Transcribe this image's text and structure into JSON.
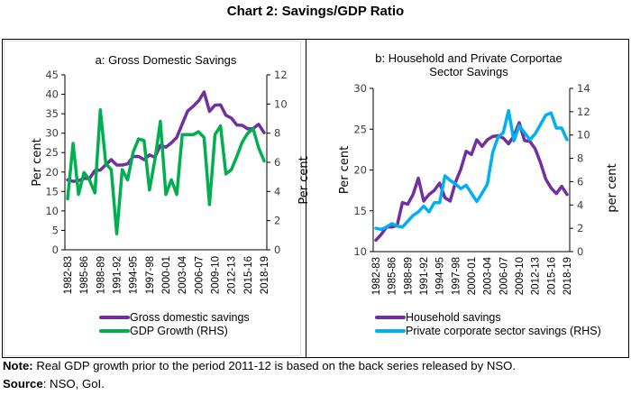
{
  "title": "Chart 2: Savings/GDP Ratio",
  "note_label": "Note:",
  "note_text": " Real GDP growth prior to the period 2011-12 is based on the back series released by NSO.",
  "source_label": "Source",
  "source_text": ": NSO, GoI.",
  "colors": {
    "purple": "#7030a0",
    "green": "#00b050",
    "blue": "#00b0f0"
  },
  "chart_data": [
    {
      "type": "line",
      "title": "a: Gross Domestic Savings",
      "xlabel": "",
      "ylabel": "Per cent",
      "ylabel_right": "Per cent",
      "ylim": [
        0,
        45
      ],
      "yticks": [
        0,
        5,
        10,
        15,
        20,
        25,
        30,
        35,
        40,
        45
      ],
      "ylim_right": [
        0,
        12
      ],
      "yticks_right": [
        0,
        2,
        4,
        6,
        8,
        10,
        12
      ],
      "grid": false,
      "legend_position": "bottom",
      "x": [
        "1982-83",
        "1983-84",
        "1984-85",
        "1985-86",
        "1986-87",
        "1987-88",
        "1988-89",
        "1989-90",
        "1990-91",
        "1991-92",
        "1992-93",
        "1993-94",
        "1994-95",
        "1995-96",
        "1996-97",
        "1997-98",
        "1998-99",
        "1999-00",
        "2000-01",
        "2001-02",
        "2002-03",
        "2003-04",
        "2004-05",
        "2005-06",
        "2006-07",
        "2007-08",
        "2008-09",
        "2009-10",
        "2010-11",
        "2011-12",
        "2012-13",
        "2013-14",
        "2014-15",
        "2015-16",
        "2016-17",
        "2017-18",
        "2018-19"
      ],
      "xticks": [
        "1982-83",
        "1985-86",
        "1988-89",
        "1991-92",
        "1994-95",
        "1997-98",
        "2000-01",
        "2003-04",
        "2006-07",
        "2009-10",
        "2012-13",
        "2015-16",
        "2018-19"
      ],
      "series": [
        {
          "name": "Gross domestic savings",
          "axis": "left",
          "color_key": "purple",
          "values": [
            18.0,
            17.6,
            17.8,
            18.4,
            18.3,
            20.4,
            20.5,
            21.9,
            23.2,
            21.8,
            21.8,
            22.1,
            24.0,
            24.0,
            23.2,
            24.4,
            23.8,
            26.9,
            26.4,
            27.5,
            28.9,
            32.4,
            35.7,
            36.9,
            38.3,
            40.6,
            35.6,
            37.2,
            37.3,
            34.6,
            33.9,
            32.1,
            32.0,
            31.1,
            31.2,
            32.3,
            30.1
          ]
        },
        {
          "name": "GDP Growth (RHS)",
          "axis": "right",
          "color_key": "green",
          "values": [
            3.5,
            7.3,
            3.8,
            5.3,
            4.8,
            3.9,
            9.6,
            5.9,
            5.5,
            1.1,
            5.5,
            4.8,
            6.7,
            7.6,
            7.5,
            4.1,
            6.2,
            8.8,
            3.8,
            4.8,
            3.8,
            7.9,
            7.9,
            7.9,
            8.1,
            7.7,
            3.1,
            7.9,
            8.5,
            5.2,
            5.5,
            6.4,
            7.4,
            8.0,
            8.3,
            7.0,
            6.1
          ]
        }
      ]
    },
    {
      "type": "line",
      "title": "b: Household and Private Corportae Sector Savings",
      "title_lines": [
        "b: Household and Private Corportae",
        "Sector Savings"
      ],
      "xlabel": "",
      "ylabel": "Per cent",
      "ylabel_right": "per cent",
      "ylim": [
        10,
        30
      ],
      "yticks": [
        10,
        15,
        20,
        25,
        30
      ],
      "ylim_right": [
        0,
        14
      ],
      "yticks_right": [
        0,
        2,
        4,
        6,
        8,
        10,
        12,
        14
      ],
      "grid": false,
      "legend_position": "bottom",
      "x": [
        "1982-83",
        "1983-84",
        "1984-85",
        "1985-86",
        "1986-87",
        "1987-88",
        "1988-89",
        "1989-90",
        "1990-91",
        "1991-92",
        "1992-93",
        "1993-94",
        "1994-95",
        "1995-96",
        "1996-97",
        "1997-98",
        "1998-99",
        "1999-00",
        "2000-01",
        "2001-02",
        "2002-03",
        "2003-04",
        "2004-05",
        "2005-06",
        "2006-07",
        "2007-08",
        "2008-09",
        "2009-10",
        "2010-11",
        "2011-12",
        "2012-13",
        "2013-14",
        "2014-15",
        "2015-16",
        "2016-17",
        "2017-18",
        "2018-19"
      ],
      "xticks": [
        "1982-83",
        "1985-86",
        "1988-89",
        "1991-92",
        "1994-95",
        "1997-98",
        "2000-01",
        "2003-04",
        "2006-07",
        "2009-10",
        "2012-13",
        "2015-16",
        "2018-19"
      ],
      "series": [
        {
          "name": "Household savings",
          "axis": "left",
          "color_key": "purple",
          "values": [
            11.4,
            12.1,
            13.0,
            13.0,
            13.2,
            16.0,
            15.8,
            17.0,
            19.0,
            16.2,
            17.0,
            17.5,
            18.4,
            16.6,
            16.2,
            18.5,
            20.1,
            22.3,
            21.9,
            23.7,
            22.9,
            23.7,
            24.1,
            24.2,
            23.9,
            23.2,
            24.2,
            25.8,
            23.6,
            23.5,
            22.6,
            20.9,
            18.9,
            17.8,
            17.1,
            18.0,
            17.0
          ]
        },
        {
          "name": "Private corporate sector savings (RHS)",
          "axis": "right",
          "color_key": "blue",
          "values": [
            2.0,
            1.9,
            2.1,
            2.4,
            2.2,
            2.1,
            2.6,
            3.1,
            3.4,
            3.9,
            3.4,
            4.2,
            4.2,
            6.5,
            6.1,
            5.8,
            5.4,
            5.7,
            5.0,
            4.3,
            5.0,
            5.8,
            8.5,
            9.8,
            10.2,
            12.1,
            9.5,
            10.8,
            10.2,
            9.6,
            10.1,
            10.9,
            11.7,
            11.9,
            10.6,
            10.6,
            9.6
          ]
        }
      ]
    }
  ]
}
